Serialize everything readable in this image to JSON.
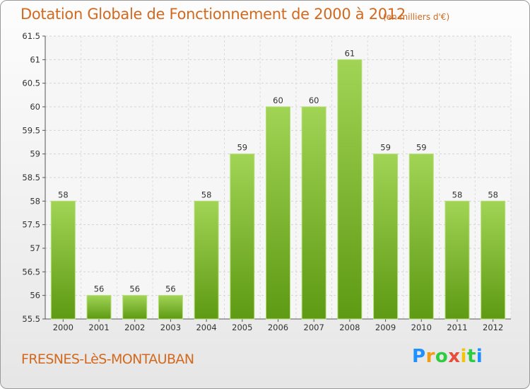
{
  "header": {
    "title": "Dotation Globale de Fonctionnement de 2000 à 2012",
    "unit": "(en milliers d'€)"
  },
  "footer": {
    "commune": "FRESNES-LèS-MONTAUBAN",
    "logo_letters": [
      "P",
      "r",
      "o",
      "x",
      "i",
      "t",
      "i"
    ],
    "logo_colors": [
      "#1e90ff",
      "#f39c12",
      "#2ecc40",
      "#e74c3c",
      "#f1c40f",
      "#2ecc40",
      "#1e90ff"
    ]
  },
  "chart_data": {
    "type": "bar",
    "title": "Dotation Globale de Fonctionnement de 2000 à 2012",
    "xlabel": "",
    "ylabel": "",
    "categories": [
      "2000",
      "2001",
      "2002",
      "2003",
      "2004",
      "2005",
      "2006",
      "2007",
      "2008",
      "2009",
      "2010",
      "2011",
      "2012"
    ],
    "values": [
      58,
      56,
      56,
      56,
      58,
      59,
      60,
      60,
      61,
      59,
      59,
      58,
      58
    ],
    "ylim": [
      55.5,
      61.5
    ],
    "yticks": [
      55.5,
      56,
      56.5,
      57,
      57.5,
      58,
      58.5,
      59,
      59.5,
      60,
      60.5,
      61,
      61.5
    ],
    "grid": true,
    "bar_color": "#7db42c"
  }
}
